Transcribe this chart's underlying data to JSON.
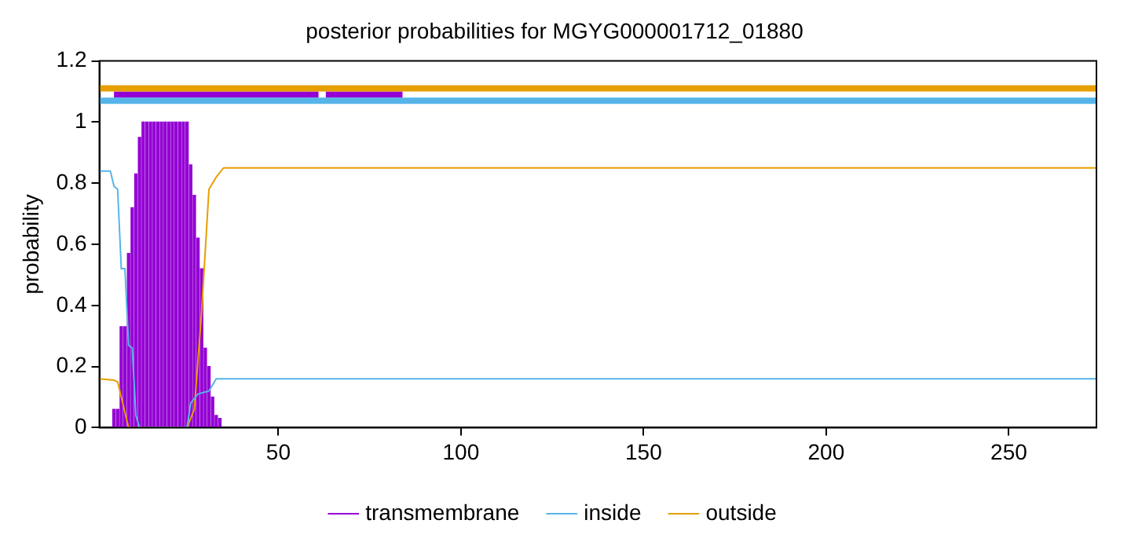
{
  "chart_data": {
    "type": "line",
    "title": "posterior probabilities for MGYG000001712_01880",
    "ylabel": "probability",
    "xlim": [
      1,
      274
    ],
    "xticks": [
      50,
      100,
      150,
      200,
      250
    ],
    "ylim": [
      0,
      1.2
    ],
    "yticks": [
      0,
      0.2,
      0.4,
      0.6,
      0.8,
      1,
      1.2
    ],
    "grid": false,
    "legend": "bottom",
    "marker": "none",
    "series": [
      {
        "name": "transmembrane",
        "type": "bar",
        "color": "#9400d3",
        "x": [
          5,
          6,
          7,
          8,
          9,
          10,
          11,
          12,
          13,
          14,
          15,
          16,
          17,
          18,
          19,
          20,
          21,
          22,
          23,
          24,
          25,
          26,
          27,
          28,
          29,
          30,
          31,
          32,
          33,
          34
        ],
        "values": [
          0.06,
          0.06,
          0.33,
          0.33,
          0.57,
          0.72,
          0.83,
          0.95,
          1,
          1,
          1,
          1,
          1,
          1,
          1,
          1,
          1,
          1,
          1,
          1,
          1,
          0.86,
          0.76,
          0.62,
          0.52,
          0.26,
          0.2,
          0.1,
          0.04,
          0.03
        ]
      },
      {
        "name": "inside",
        "color": "#56b4e9",
        "x": [
          1,
          4,
          5,
          6,
          7,
          8,
          9,
          10,
          11,
          12,
          25,
          26,
          28,
          31,
          33,
          274
        ],
        "values": [
          0.84,
          0.84,
          0.79,
          0.78,
          0.52,
          0.52,
          0.27,
          0.26,
          0.04,
          0,
          0,
          0.08,
          0.11,
          0.12,
          0.16,
          0.16
        ]
      },
      {
        "name": "outside",
        "color": "#e69f00",
        "x": [
          1,
          5,
          6,
          9,
          25,
          27,
          29,
          31,
          33,
          35,
          274
        ],
        "values": [
          0.16,
          0.155,
          0.15,
          0,
          0,
          0.06,
          0.38,
          0.78,
          0.82,
          0.85,
          0.85
        ]
      },
      {
        "color": "#e69f00",
        "x": [
          1,
          274
        ],
        "values": [
          1.11,
          1.11
        ]
      },
      {
        "color": "#56b4e9",
        "x": [
          1,
          274
        ],
        "values": [
          1.07,
          1.07
        ]
      },
      {
        "color": "#9400d3",
        "x": [
          5,
          61,
          62,
          63,
          84
        ],
        "values": [
          1.09,
          1.09,
          null,
          1.09,
          1.09
        ]
      }
    ]
  }
}
